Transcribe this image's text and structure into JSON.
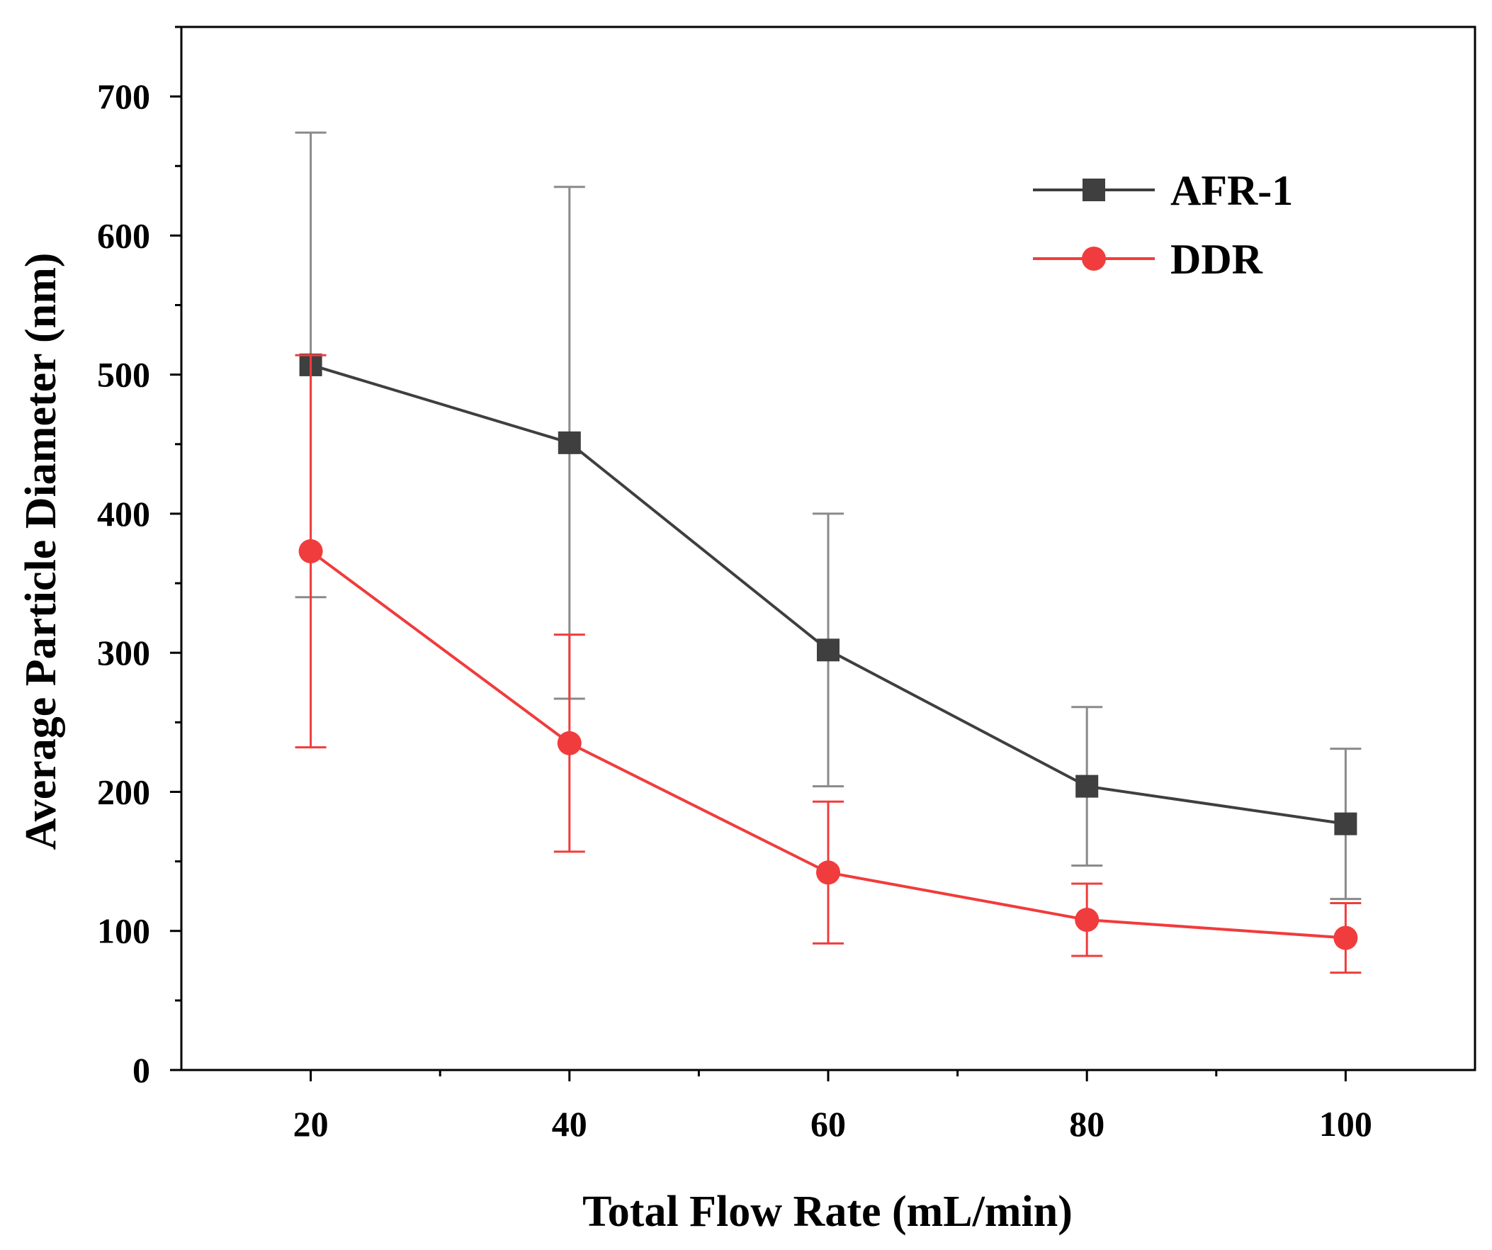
{
  "chart_data": {
    "type": "line",
    "title": "",
    "xlabel": "Total Flow Rate (mL/min)",
    "ylabel": "Average Particle Diameter (nm)",
    "xlim": [
      10,
      110
    ],
    "ylim": [
      0,
      750
    ],
    "x": [
      20,
      40,
      60,
      80,
      100
    ],
    "x_ticks": [
      20,
      40,
      60,
      80,
      100
    ],
    "x_tick_labels": [
      "20",
      "40",
      "60",
      "80",
      "100"
    ],
    "y_ticks": [
      0,
      100,
      200,
      300,
      400,
      500,
      600,
      700
    ],
    "y_tick_labels": [
      "0",
      "100",
      "200",
      "300",
      "400",
      "500",
      "600",
      "700"
    ],
    "legend_position": "top-right",
    "series": [
      {
        "name": "AFR-1",
        "marker": "square",
        "color": "#3f3f3f",
        "error_color": "#8a8a8a",
        "values": [
          507,
          451,
          302,
          204,
          177
        ],
        "errors": [
          167,
          184,
          98,
          57,
          54
        ]
      },
      {
        "name": "DDR",
        "marker": "circle",
        "color": "#f03c3c",
        "error_color": "#f03c3c",
        "values": [
          373,
          235,
          142,
          108,
          95
        ],
        "errors": [
          141,
          78,
          51,
          26,
          25
        ]
      }
    ]
  }
}
